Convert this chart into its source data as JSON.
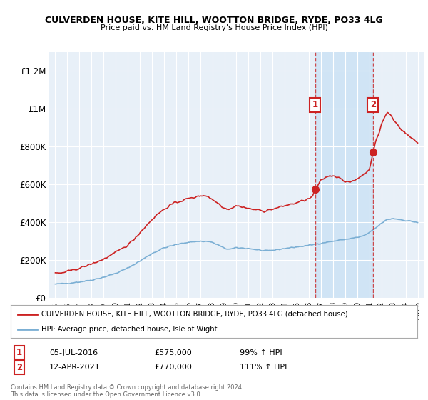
{
  "title": "CULVERDEN HOUSE, KITE HILL, WOOTTON BRIDGE, RYDE, PO33 4LG",
  "subtitle": "Price paid vs. HM Land Registry's House Price Index (HPI)",
  "ylabel_ticks": [
    "£0",
    "£200K",
    "£400K",
    "£600K",
    "£800K",
    "£1M",
    "£1.2M"
  ],
  "ytick_vals": [
    0,
    200000,
    400000,
    600000,
    800000,
    1000000,
    1200000
  ],
  "ylim": [
    0,
    1300000
  ],
  "xlim_start": 1994.5,
  "xlim_end": 2025.5,
  "background_color": "#ffffff",
  "plot_bg_color": "#e8f0f8",
  "grid_color": "#ffffff",
  "shade_color": "#d0e4f5",
  "red_color": "#cc2222",
  "blue_color": "#7bafd4",
  "marker1_x": 2016.5,
  "marker1_y": 575000,
  "marker2_x": 2021.3,
  "marker2_y": 770000,
  "marker1_label": "1",
  "marker2_label": "2",
  "legend_line1": "CULVERDEN HOUSE, KITE HILL, WOOTTON BRIDGE, RYDE, PO33 4LG (detached house)",
  "legend_line2": "HPI: Average price, detached house, Isle of Wight",
  "footer": "Contains HM Land Registry data © Crown copyright and database right 2024.\nThis data is licensed under the Open Government Licence v3.0.",
  "xtick_years": [
    1995,
    1996,
    1997,
    1998,
    1999,
    2000,
    2001,
    2002,
    2003,
    2004,
    2005,
    2006,
    2007,
    2008,
    2009,
    2010,
    2011,
    2012,
    2013,
    2014,
    2015,
    2016,
    2017,
    2018,
    2019,
    2020,
    2021,
    2022,
    2023,
    2024,
    2025
  ]
}
